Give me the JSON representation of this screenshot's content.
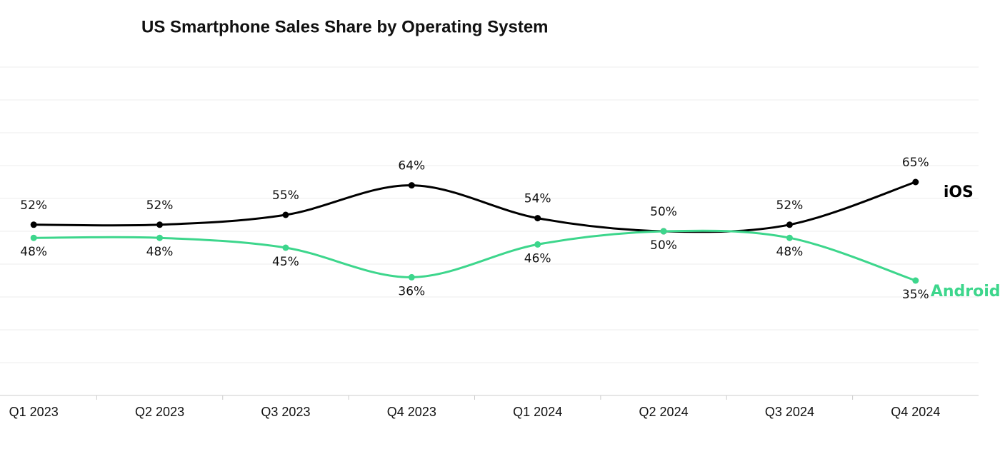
{
  "chart_data": {
    "type": "line",
    "title": "US Smartphone Sales Share by Operating System",
    "categories": [
      "Q1 2023",
      "Q2 2023",
      "Q3 2023",
      "Q4 2023",
      "Q1 2024",
      "Q2 2024",
      "Q3 2024",
      "Q4 2024"
    ],
    "series": [
      {
        "name": "iOS",
        "color": "#000000",
        "values": [
          52,
          52,
          55,
          64,
          54,
          50,
          52,
          65
        ],
        "value_labels": [
          "52%",
          "52%",
          "55%",
          "64%",
          "54%",
          "50%",
          "52%",
          "65%"
        ]
      },
      {
        "name": "Android",
        "color": "#3dd68c",
        "values": [
          48,
          48,
          45,
          36,
          46,
          50,
          48,
          35
        ],
        "value_labels": [
          "48%",
          "48%",
          "45%",
          "36%",
          "46%",
          "50%",
          "48%",
          "35%"
        ]
      }
    ],
    "ylim": [
      0,
      100
    ],
    "yticks": [
      0,
      10,
      20,
      30,
      40,
      50,
      60,
      70,
      80,
      90,
      100
    ],
    "grid": true
  }
}
